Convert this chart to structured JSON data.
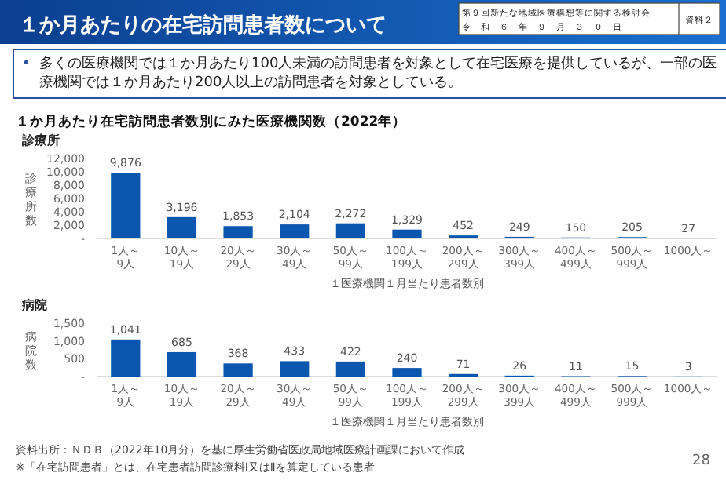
{
  "chart_data": [
    {
      "type": "bar",
      "title": "診療所",
      "ylabel": "診療所数",
      "xlabel": "１医療機関１月当たり患者数別",
      "categories": [
        "1人～9人",
        "10人～19人",
        "20人～29人",
        "30人～49人",
        "50人～99人",
        "100人～199人",
        "200人～299人",
        "300人～399人",
        "400人～499人",
        "500人～999人",
        "1000人～"
      ],
      "values": [
        9876,
        3196,
        1853,
        2104,
        2272,
        1329,
        452,
        249,
        150,
        205,
        27
      ],
      "color": "#0b57b0",
      "ylim": [
        0,
        12000
      ],
      "yticks": [
        {
          "value": 0,
          "label": "-"
        },
        {
          "value": 2000,
          "label": "2,000"
        },
        {
          "value": 4000,
          "label": "4,000"
        },
        {
          "value": 6000,
          "label": "6,000"
        },
        {
          "value": 8000,
          "label": "8,000"
        },
        {
          "value": 10000,
          "label": "10,000"
        },
        {
          "value": 12000,
          "label": "12,000"
        }
      ],
      "value_labels": [
        "9,876",
        "3,196",
        "1,853",
        "2,104",
        "2,272",
        "1,329",
        "452",
        "249",
        "150",
        "205",
        "27"
      ],
      "annotations": [
        "１か月あたりの在宅訪問患者数について",
        "第９回新たな地域医療構想等に関する検討会",
        "令　和　６　年　９　月　３　０　日",
        "資料２",
        "•",
        "多くの医療機関では１か月あたり100人未満の訪問患者を対象として在宅医療を提供しているが、一部の医療機関では１か月あたり200人以上の訪問患者を対象としている。",
        "１か月あたり在宅訪問患者数別にみた医療機関数（2022年）"
      ]
    },
    {
      "type": "bar",
      "title": "病院",
      "ylabel": "病院数",
      "xlabel": "１医療機関１月当たり患者数別",
      "categories": [
        "1人～9人",
        "10人～19人",
        "20人～29人",
        "30人～49人",
        "50人～99人",
        "100人～199人",
        "200人～299人",
        "300人～399人",
        "400人～499人",
        "500人～999人",
        "1000人～"
      ],
      "values": [
        1041,
        685,
        368,
        433,
        422,
        240,
        71,
        26,
        11,
        15,
        3
      ],
      "color": "#0b57b0",
      "ylim": [
        0,
        1500
      ],
      "yticks": [
        {
          "value": 0,
          "label": "-"
        },
        {
          "value": 500,
          "label": "500"
        },
        {
          "value": 1000,
          "label": "1,000"
        },
        {
          "value": 1500,
          "label": "1,500"
        }
      ],
      "value_labels": [
        "1,041",
        "685",
        "368",
        "433",
        "422",
        "240",
        "71",
        "26",
        "11",
        "15",
        "3"
      ],
      "annotations": [
        "資料出所：ＮＤＢ（2022年10月分）を基に厚生労働省医政局地域医療計画課において作成",
        "※「在宅訪問患者」とは、在宅患者訪問診療料Ⅰ又はⅡを算定している患者",
        "28"
      ]
    }
  ]
}
